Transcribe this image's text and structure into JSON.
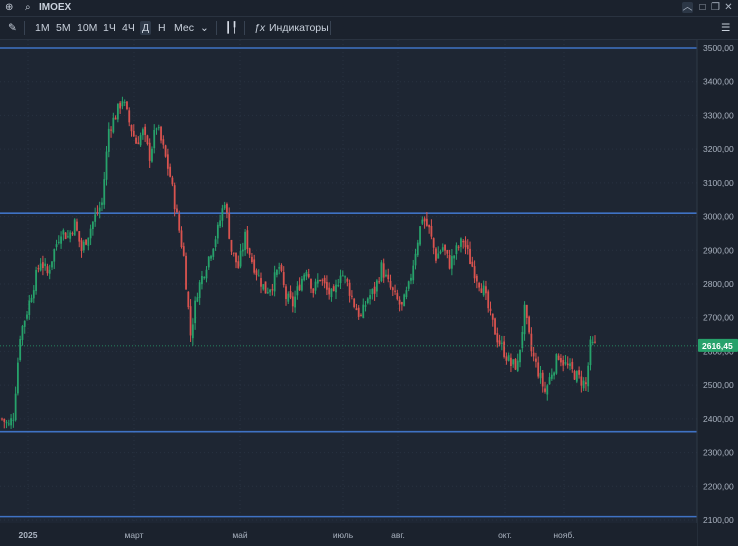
{
  "header": {
    "title": "IMOEX",
    "add_icon": "plus-icon",
    "search_icon": "search-icon"
  },
  "window_controls": [
    "chevron-up-icon",
    "square-icon",
    "copy-icon",
    "close-icon"
  ],
  "toolbar": {
    "timeframes": [
      "1М",
      "5М",
      "10М",
      "1Ч",
      "4Ч",
      "Д",
      "Н",
      "Мес"
    ],
    "active_timeframe": "Д",
    "indicators_label": "Индикаторы",
    "fx_label": "ƒx"
  },
  "colors": {
    "background": "#1e2633",
    "up": "#27a26b",
    "down": "#d9534f",
    "level_line": "#3f72c4",
    "price_badge": "#27a26b"
  },
  "chart_data": {
    "type": "candlestick",
    "title": "IMOEX",
    "timeframe": "Д",
    "current_price_label": "2616,45",
    "current_price": 2616.45,
    "ylim": [
      2080,
      3520
    ],
    "y_ticks": [
      2100,
      2200,
      2300,
      2400,
      2500,
      2600,
      2700,
      2800,
      2900,
      3000,
      3100,
      3200,
      3300,
      3400,
      3500
    ],
    "y_tick_labels": [
      "2100,00",
      "2200,00",
      "2300,00",
      "2400,00",
      "2500,00",
      "2600,00",
      "2700,00",
      "2800,00",
      "2900,00",
      "3000,00",
      "3100,00",
      "3200,00",
      "3300,00",
      "3400,00",
      "3500,00"
    ],
    "x_labels": [
      "2025",
      "март",
      "май",
      "июль",
      "авг.",
      "окт.",
      "нояб."
    ],
    "horizontal_levels": [
      3500,
      3010,
      2362,
      2110
    ],
    "close_path": [
      [
        0,
        2400
      ],
      [
        3,
        2380
      ],
      [
        5,
        2410
      ],
      [
        8,
        2650
      ],
      [
        11,
        2720
      ],
      [
        14,
        2800
      ],
      [
        17,
        2870
      ],
      [
        20,
        2830
      ],
      [
        23,
        2900
      ],
      [
        26,
        2960
      ],
      [
        29,
        2940
      ],
      [
        32,
        2980
      ],
      [
        35,
        2900
      ],
      [
        38,
        2950
      ],
      [
        41,
        3000
      ],
      [
        44,
        3040
      ],
      [
        47,
        3260
      ],
      [
        50,
        3300
      ],
      [
        53,
        3350
      ],
      [
        56,
        3280
      ],
      [
        59,
        3220
      ],
      [
        62,
        3250
      ],
      [
        65,
        3180
      ],
      [
        68,
        3270
      ],
      [
        71,
        3200
      ],
      [
        74,
        3120
      ],
      [
        77,
        3000
      ],
      [
        80,
        2880
      ],
      [
        83,
        2650
      ],
      [
        86,
        2780
      ],
      [
        89,
        2840
      ],
      [
        92,
        2900
      ],
      [
        95,
        2960
      ],
      [
        98,
        3050
      ],
      [
        101,
        2900
      ],
      [
        104,
        2850
      ],
      [
        107,
        2940
      ],
      [
        110,
        2870
      ],
      [
        113,
        2820
      ],
      [
        116,
        2780
      ],
      [
        119,
        2800
      ],
      [
        122,
        2850
      ],
      [
        125,
        2760
      ],
      [
        128,
        2740
      ],
      [
        131,
        2800
      ],
      [
        134,
        2850
      ],
      [
        137,
        2780
      ],
      [
        140,
        2820
      ],
      [
        143,
        2780
      ],
      [
        146,
        2760
      ],
      [
        149,
        2840
      ],
      [
        152,
        2800
      ],
      [
        155,
        2740
      ],
      [
        158,
        2700
      ],
      [
        161,
        2760
      ],
      [
        164,
        2780
      ],
      [
        167,
        2850
      ],
      [
        170,
        2800
      ],
      [
        173,
        2760
      ],
      [
        176,
        2730
      ],
      [
        179,
        2790
      ],
      [
        182,
        2900
      ],
      [
        185,
        3000
      ],
      [
        188,
        2960
      ],
      [
        191,
        2880
      ],
      [
        194,
        2910
      ],
      [
        197,
        2860
      ],
      [
        200,
        2900
      ],
      [
        203,
        2930
      ],
      [
        206,
        2870
      ],
      [
        209,
        2820
      ],
      [
        212,
        2780
      ],
      [
        215,
        2700
      ],
      [
        218,
        2640
      ],
      [
        221,
        2600
      ],
      [
        224,
        2560
      ],
      [
        227,
        2560
      ],
      [
        230,
        2720
      ],
      [
        233,
        2600
      ],
      [
        236,
        2540
      ],
      [
        239,
        2480
      ],
      [
        242,
        2540
      ],
      [
        245,
        2590
      ],
      [
        248,
        2560
      ],
      [
        251,
        2540
      ],
      [
        254,
        2520
      ],
      [
        257,
        2500
      ],
      [
        259,
        2616.45
      ]
    ]
  }
}
